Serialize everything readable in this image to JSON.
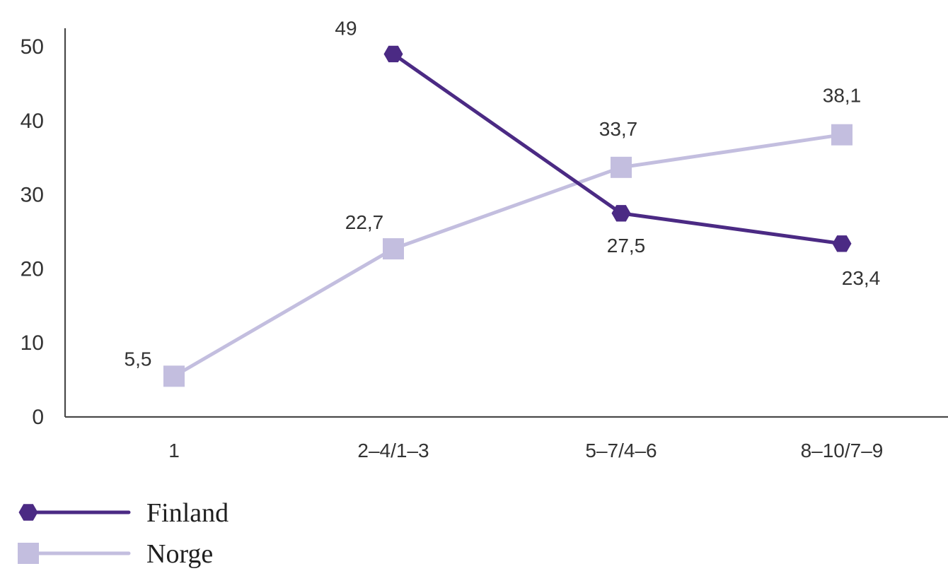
{
  "chart_data": {
    "type": "line",
    "title": "",
    "xlabel": "",
    "ylabel": "",
    "categories": [
      "1",
      "2–4/1–3",
      "5–7/4–6",
      "8–10/7–9"
    ],
    "y_ticks": [
      "0",
      "10",
      "20",
      "30",
      "40",
      "50"
    ],
    "ylim": [
      0,
      50
    ],
    "grid": false,
    "legend_position": "bottom-left",
    "series": [
      {
        "name": "Finland",
        "color": "#4b2a84",
        "marker": "hexagon",
        "values": [
          null,
          49,
          27.5,
          23.4
        ],
        "labels": [
          "",
          "49",
          "27,5",
          "23,4"
        ]
      },
      {
        "name": "Norge",
        "color": "#c3bedf",
        "marker": "square",
        "values": [
          5.5,
          22.7,
          33.7,
          38.1
        ],
        "labels": [
          "5,5",
          "22,7",
          "33,7",
          "38,1"
        ]
      }
    ]
  }
}
